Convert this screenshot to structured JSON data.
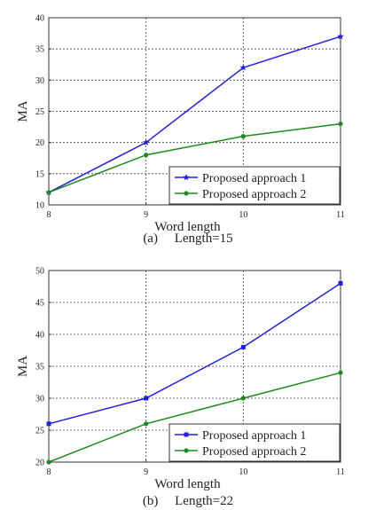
{
  "chart_data": [
    {
      "type": "line",
      "caption": "(a)     Length=15",
      "xlabel": "Word length",
      "ylabel": "MA",
      "x": [
        8,
        9,
        10,
        11
      ],
      "xlim": [
        8,
        11
      ],
      "ylim": [
        10,
        40
      ],
      "xticks": [
        "8",
        "9",
        "10",
        "11"
      ],
      "yticks": [
        "10",
        "15",
        "20",
        "25",
        "30",
        "35",
        "40"
      ],
      "grid": true,
      "legend_position": "bottom-right",
      "series": [
        {
          "name": "Proposed approach 1",
          "values": [
            12,
            20,
            32,
            37
          ],
          "color": "#1f1fe6",
          "marker": "star"
        },
        {
          "name": "Proposed approach 2",
          "values": [
            12,
            18,
            21,
            23
          ],
          "color": "#1e8a1e",
          "marker": "dot"
        }
      ]
    },
    {
      "type": "line",
      "caption": "(b)     Length=22",
      "xlabel": "Word length",
      "ylabel": "MA",
      "x": [
        8,
        9,
        10,
        11
      ],
      "xlim": [
        8,
        11
      ],
      "ylim": [
        20,
        50
      ],
      "xticks": [
        "8",
        "9",
        "10",
        "11"
      ],
      "yticks": [
        "20",
        "25",
        "30",
        "35",
        "40",
        "45",
        "50"
      ],
      "grid": true,
      "legend_position": "bottom-right",
      "series": [
        {
          "name": "Proposed approach 1",
          "values": [
            26,
            30,
            38,
            48
          ],
          "color": "#1f1fe6",
          "marker": "square"
        },
        {
          "name": "Proposed approach 2",
          "values": [
            20,
            26,
            30,
            34
          ],
          "color": "#1e8a1e",
          "marker": "dot"
        }
      ]
    }
  ]
}
